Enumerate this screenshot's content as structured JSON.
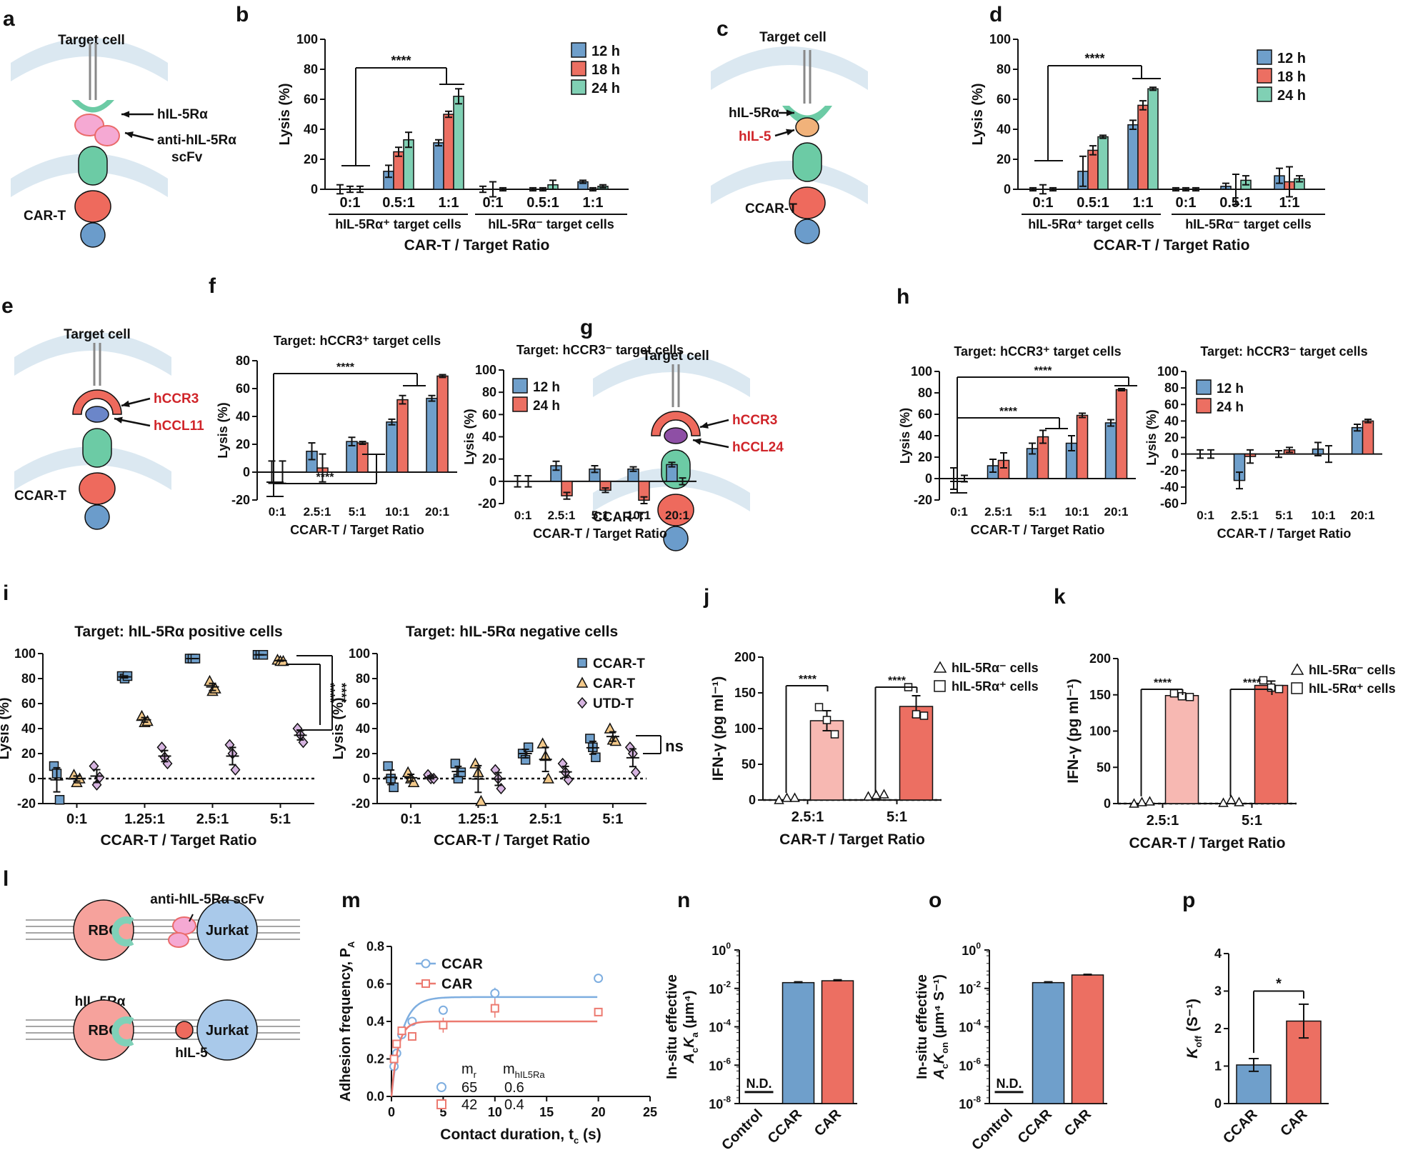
{
  "colors": {
    "blue": "#6f9fcb",
    "red": "#ec6f62",
    "teal": "#80d0b4",
    "pinkRBC": "#f6a09a",
    "lightRed": "#f7b8b2",
    "mem": "#dbe8f1",
    "ligand": "#7fd1b8"
  },
  "panels": {
    "a": {
      "letter": "a",
      "target_cell": "Target cell",
      "receptor": "hIL-5Rα",
      "scfv_1": "anti-hIL-5Rα",
      "scfv_2": "scFv",
      "cell": "CAR-T"
    },
    "c": {
      "letter": "c",
      "target_cell": "Target cell",
      "receptor": "hIL-5Rα",
      "ligand": "hIL-5",
      "cell": "CCAR-T"
    },
    "e": {
      "letter": "e",
      "target_cell": "Target cell",
      "receptor": "hCCR3",
      "ligand": "hCCL11",
      "cell": "CCAR-T"
    },
    "g": {
      "letter": "g",
      "target_cell": "Target cell",
      "receptor": "hCCR3",
      "ligand": "hCCL24",
      "cell": "CCAR-T"
    },
    "l": {
      "letter": "l",
      "scfv": "anti-hIL-5Rα scFv",
      "receptor": "hIL-5Rα",
      "rbc": "RBC",
      "jurkat": "Jurkat",
      "ligand": "hIL-5"
    },
    "letters": {
      "b": "b",
      "d": "d",
      "f": "f",
      "h": "h",
      "i": "i",
      "j": "j",
      "k": "k",
      "m": "m",
      "n": "n",
      "o": "o",
      "p": "p"
    }
  },
  "chart_data": [
    {
      "id": "b",
      "type": "bar",
      "ylabel": "Lysis (%)",
      "xlabel": "CAR-T / Target Ratio",
      "ylim": [
        0,
        100
      ],
      "yticks": [
        0,
        20,
        40,
        60,
        80,
        100
      ],
      "categories": [
        "0:1",
        "0.5:1",
        "1:1",
        "0:1",
        "0.5:1",
        "1:1"
      ],
      "groups": [
        "hIL-5Rα⁺ target cells",
        "hIL-5Rα⁻ target cells"
      ],
      "series": [
        {
          "name": "12 h",
          "values": [
            0,
            12,
            31,
            0,
            0,
            5
          ],
          "err": [
            3,
            4,
            2,
            2,
            1,
            1
          ]
        },
        {
          "name": "18 h",
          "values": [
            0,
            25,
            50,
            0,
            0,
            0
          ],
          "err": [
            2,
            3,
            2,
            5,
            1,
            1
          ]
        },
        {
          "name": "24 h",
          "values": [
            0,
            33,
            62,
            0,
            3,
            2
          ],
          "err": [
            2,
            5,
            5,
            1,
            3,
            1
          ]
        }
      ],
      "annotation": "****"
    },
    {
      "id": "d",
      "type": "bar",
      "ylabel": "Lysis (%)",
      "xlabel": "CCAR-T / Target Ratio",
      "ylim": [
        0,
        100
      ],
      "yticks": [
        0,
        20,
        40,
        60,
        80,
        100
      ],
      "categories": [
        "0:1",
        "0.5:1",
        "1:1",
        "0:1",
        "0.5:1",
        "1:1"
      ],
      "groups": [
        "hIL-5Rα⁺ target cells",
        "hIL-5Rα⁻ target cells"
      ],
      "series": [
        {
          "name": "12 h",
          "values": [
            0,
            12,
            43,
            0,
            2,
            9
          ],
          "err": [
            1,
            10,
            3,
            1,
            2,
            5
          ]
        },
        {
          "name": "18 h",
          "values": [
            0,
            26,
            56,
            0,
            0,
            5
          ],
          "err": [
            3,
            3,
            3,
            1,
            10,
            10
          ]
        },
        {
          "name": "24 h",
          "values": [
            0,
            35,
            67,
            0,
            6,
            7
          ],
          "err": [
            1,
            1,
            1,
            1,
            3,
            2
          ]
        }
      ],
      "annotation": "****"
    },
    {
      "id": "f1",
      "type": "bar",
      "title": "Target: hCCR3⁺ target cells",
      "ylabel": "Lysis (%)",
      "xlabel": "CCAR-T / Target Ratio",
      "ylim": [
        -20,
        80
      ],
      "yticks": [
        -20,
        0,
        20,
        40,
        60,
        80
      ],
      "categories": [
        "0:1",
        "2.5:1",
        "5:1",
        "10:1",
        "20:1"
      ],
      "series": [
        {
          "name": "12 h",
          "values": [
            0,
            15,
            22,
            36,
            53
          ],
          "err": [
            8,
            6,
            3,
            2,
            2
          ]
        },
        {
          "name": "24 h",
          "values": [
            0,
            3,
            21,
            52,
            69
          ],
          "err": [
            8,
            10,
            1,
            3,
            1
          ]
        }
      ],
      "annotations": [
        "****",
        "****"
      ]
    },
    {
      "id": "f2",
      "type": "bar",
      "title": "Target: hCCR3⁻ target cells",
      "ylabel": "Lysis (%)",
      "xlabel": "CCAR-T / Target Ratio",
      "ylim": [
        -20,
        100
      ],
      "yticks": [
        -20,
        0,
        20,
        40,
        60,
        80,
        100
      ],
      "categories": [
        "0:1",
        "2.5:1",
        "5:1",
        "10:1",
        "20:1"
      ],
      "series": [
        {
          "name": "12 h",
          "values": [
            0,
            14,
            11,
            11,
            15
          ],
          "err": [
            5,
            4,
            3,
            2,
            2
          ]
        },
        {
          "name": "24 h",
          "values": [
            0,
            -13,
            -8,
            -17,
            0
          ],
          "err": [
            5,
            3,
            2,
            3,
            3
          ]
        }
      ]
    },
    {
      "id": "h1",
      "type": "bar",
      "title": "Target: hCCR3⁺ target cells",
      "ylabel": "Lysis (%)",
      "xlabel": "CCAR-T / Target Ratio",
      "ylim": [
        -20,
        100
      ],
      "yticks": [
        -20,
        0,
        20,
        40,
        60,
        80,
        100
      ],
      "categories": [
        "0:1",
        "2.5:1",
        "5:1",
        "10:1",
        "20:1"
      ],
      "series": [
        {
          "name": "12 h",
          "values": [
            0,
            12,
            28,
            33,
            52
          ],
          "err": [
            10,
            6,
            5,
            7,
            3
          ]
        },
        {
          "name": "24 h",
          "values": [
            0,
            17,
            39,
            59,
            83
          ],
          "err": [
            3,
            7,
            6,
            2,
            1
          ]
        }
      ],
      "annotations": [
        "****",
        "****"
      ]
    },
    {
      "id": "h2",
      "type": "bar",
      "title": "Target: hCCR3⁻ target cells",
      "ylabel": "Lysis (%)",
      "xlabel": "CCAR-T / Target Ratio",
      "ylim": [
        -60,
        100
      ],
      "yticks": [
        -60,
        -40,
        -20,
        0,
        20,
        40,
        60,
        80,
        100
      ],
      "categories": [
        "0:1",
        "2.5:1",
        "5:1",
        "10:1",
        "20:1"
      ],
      "series": [
        {
          "name": "12 h",
          "values": [
            0,
            -32,
            0,
            6,
            32
          ],
          "err": [
            5,
            10,
            4,
            8,
            4
          ]
        },
        {
          "name": "24 h",
          "values": [
            0,
            -3,
            5,
            0,
            40
          ],
          "err": [
            5,
            8,
            3,
            10,
            2
          ]
        }
      ]
    },
    {
      "id": "i1",
      "type": "scatter",
      "title": "Target: hIL-5Rα positive cells",
      "ylabel": "Lysis (%)",
      "xlabel": "CCAR-T / Target Ratio",
      "ylim": [
        -20,
        100
      ],
      "yticks": [
        -20,
        0,
        20,
        40,
        60,
        80,
        100
      ],
      "categories": [
        "0:1",
        "1.25:1",
        "2.5:1",
        "5:1"
      ],
      "series": [
        {
          "name": "CCAR-T",
          "points": [
            [
              10,
              4,
              -17
            ],
            [
              82,
              80,
              82
            ],
            [
              96,
              96,
              96
            ],
            [
              99,
              99,
              99
            ]
          ]
        },
        {
          "name": "CAR-T",
          "points": [
            [
              3,
              -3,
              0
            ],
            [
              50,
              45,
              46
            ],
            [
              78,
              70,
              72
            ],
            [
              95,
              94,
              94
            ]
          ]
        },
        {
          "name": "UTD-T",
          "points": [
            [
              10,
              -5,
              1
            ],
            [
              25,
              17,
              12
            ],
            [
              27,
              20,
              7
            ],
            [
              40,
              35,
              29
            ]
          ]
        }
      ],
      "annotations": [
        "****",
        "****"
      ]
    },
    {
      "id": "i2",
      "type": "scatter",
      "title": "Target: hIL-5Rα negative cells",
      "ylabel": "Lysis (%)",
      "xlabel": "CCAR-T / Target Ratio",
      "ylim": [
        -20,
        100
      ],
      "yticks": [
        -20,
        0,
        20,
        40,
        60,
        80,
        100
      ],
      "categories": [
        "0:1",
        "1.25:1",
        "2.5:1",
        "5:1"
      ],
      "series": [
        {
          "name": "CCAR-T",
          "points": [
            [
              10,
              0,
              -7
            ],
            [
              12,
              0,
              5
            ],
            [
              20,
              15,
              25
            ],
            [
              32,
              25,
              17
            ]
          ]
        },
        {
          "name": "CAR-T",
          "points": [
            [
              5,
              0,
              -3
            ],
            [
              12,
              5,
              -18
            ],
            [
              28,
              18,
              0
            ],
            [
              40,
              31,
              30
            ]
          ]
        },
        {
          "name": "UTD-T",
          "points": [
            [
              3,
              0,
              0
            ],
            [
              7,
              0,
              -8
            ],
            [
              12,
              5,
              -1
            ],
            [
              25,
              20,
              5
            ]
          ]
        }
      ],
      "annotation": "ns"
    },
    {
      "id": "j",
      "type": "bar",
      "ylabel": "IFN-γ (pg ml⁻¹)",
      "xlabel": "CAR-T / Target Ratio",
      "ylim": [
        0,
        200
      ],
      "yticks": [
        0,
        50,
        100,
        150,
        200
      ],
      "categories": [
        "2.5:1",
        "5:1"
      ],
      "series": [
        {
          "name": "hIL-5Rα⁻ cells",
          "values": [
            2,
            6
          ],
          "points": [
            [
              0,
              3,
              3
            ],
            [
              5,
              7,
              8
            ]
          ]
        },
        {
          "name": "hIL-5Rα⁺ cells",
          "values": [
            111,
            131
          ],
          "err": [
            14,
            15
          ],
          "points": [
            [
              130,
              112,
              92
            ],
            [
              158,
              120,
              118
            ]
          ]
        }
      ],
      "annotations": [
        "****",
        "****"
      ]
    },
    {
      "id": "k",
      "type": "bar",
      "ylabel": "IFN-γ (pg ml⁻¹)",
      "xlabel": "CCAR-T / Target Ratio",
      "ylim": [
        0,
        200
      ],
      "yticks": [
        0,
        50,
        100,
        150,
        200
      ],
      "categories": [
        "2.5:1",
        "5:1"
      ],
      "series": [
        {
          "name": "hIL-5Rα⁻ cells",
          "values": [
            2,
            3
          ],
          "points": [
            [
              0,
              2,
              3
            ],
            [
              1,
              5,
              2
            ]
          ]
        },
        {
          "name": "hIL-5Rα⁺ cells",
          "values": [
            149,
            163
          ],
          "err": [
            3,
            6
          ],
          "points": [
            [
              152,
              148,
              147
            ],
            [
              170,
              160,
              158
            ]
          ]
        }
      ],
      "annotations": [
        "****",
        "****"
      ]
    },
    {
      "id": "m",
      "type": "line",
      "ylabel": "Adhesion frequency, P",
      "ylabel_sub": "A",
      "xlabel": "Contact duration, t",
      "xlabel_sub": "c",
      "xlabel_unit": " (s)",
      "xlim": [
        0,
        25
      ],
      "ylim": [
        0,
        0.8
      ],
      "xticks": [
        0,
        5,
        10,
        15,
        20,
        25
      ],
      "yticks": [
        0.0,
        0.2,
        0.4,
        0.6,
        0.8
      ],
      "series": [
        {
          "name": "CCAR",
          "x": [
            0.25,
            0.5,
            1,
            2,
            5,
            10,
            20
          ],
          "y": [
            0.16,
            0.23,
            0.33,
            0.4,
            0.46,
            0.55,
            0.63
          ],
          "err": [
            0.02,
            0.02,
            0.02,
            0.02,
            0.01,
            0.03,
            0.02
          ],
          "fit_plateau": 0.53,
          "fit_k": 1.0
        },
        {
          "name": "CAR",
          "x": [
            0.25,
            0.5,
            1,
            2,
            5,
            10,
            20
          ],
          "y": [
            0.2,
            0.28,
            0.35,
            0.32,
            0.38,
            0.47,
            0.45
          ],
          "err": [
            0.02,
            0.02,
            0.02,
            0.02,
            0.04,
            0.05,
            0.02
          ],
          "fit_plateau": 0.4,
          "fit_k": 1.6
        }
      ],
      "table": {
        "col1": "m",
        "col1_sub": "r",
        "col2": "m",
        "col2_sub": "hIL5Ra",
        "rows": [
          [
            "65",
            "0.6"
          ],
          [
            "42",
            "0.4"
          ]
        ]
      }
    },
    {
      "id": "n",
      "type": "bar",
      "ylabel_1": "In-situ effective",
      "ylabel_2": "A",
      "ylabel_2_sub": "c",
      "ylabel_3": "K",
      "ylabel_3_sub": "a",
      "ylabel_4": " (μm⁴)",
      "yscale": "log",
      "ylim_exp": [
        -8,
        0
      ],
      "categories": [
        "Control",
        "CCAR",
        "CAR"
      ],
      "values": [
        null,
        0.02,
        0.025
      ],
      "err": [
        null,
        0.002,
        0.003
      ],
      "nd_label": "N.D."
    },
    {
      "id": "o",
      "type": "bar",
      "ylabel_1": "In-situ effective",
      "ylabel_2": "A",
      "ylabel_2_sub": "c",
      "ylabel_3": "K",
      "ylabel_3_sub": "on",
      "ylabel_4": " (μm⁴ S⁻¹)",
      "yscale": "log",
      "ylim_exp": [
        -8,
        0
      ],
      "categories": [
        "Control",
        "CCAR",
        "CAR"
      ],
      "values": [
        null,
        0.02,
        0.05
      ],
      "err": [
        null,
        0.002,
        0.004
      ],
      "nd_label": "N.D."
    },
    {
      "id": "p",
      "type": "bar",
      "ylabel": "K",
      "ylabel_sub": "off",
      "ylabel_unit": " (S⁻¹)",
      "ylim": [
        0,
        4
      ],
      "yticks": [
        0,
        1,
        2,
        3,
        4
      ],
      "categories": [
        "CCAR",
        "CAR"
      ],
      "values": [
        1.03,
        2.2
      ],
      "err": [
        0.17,
        0.45
      ],
      "annotation": "*"
    }
  ]
}
